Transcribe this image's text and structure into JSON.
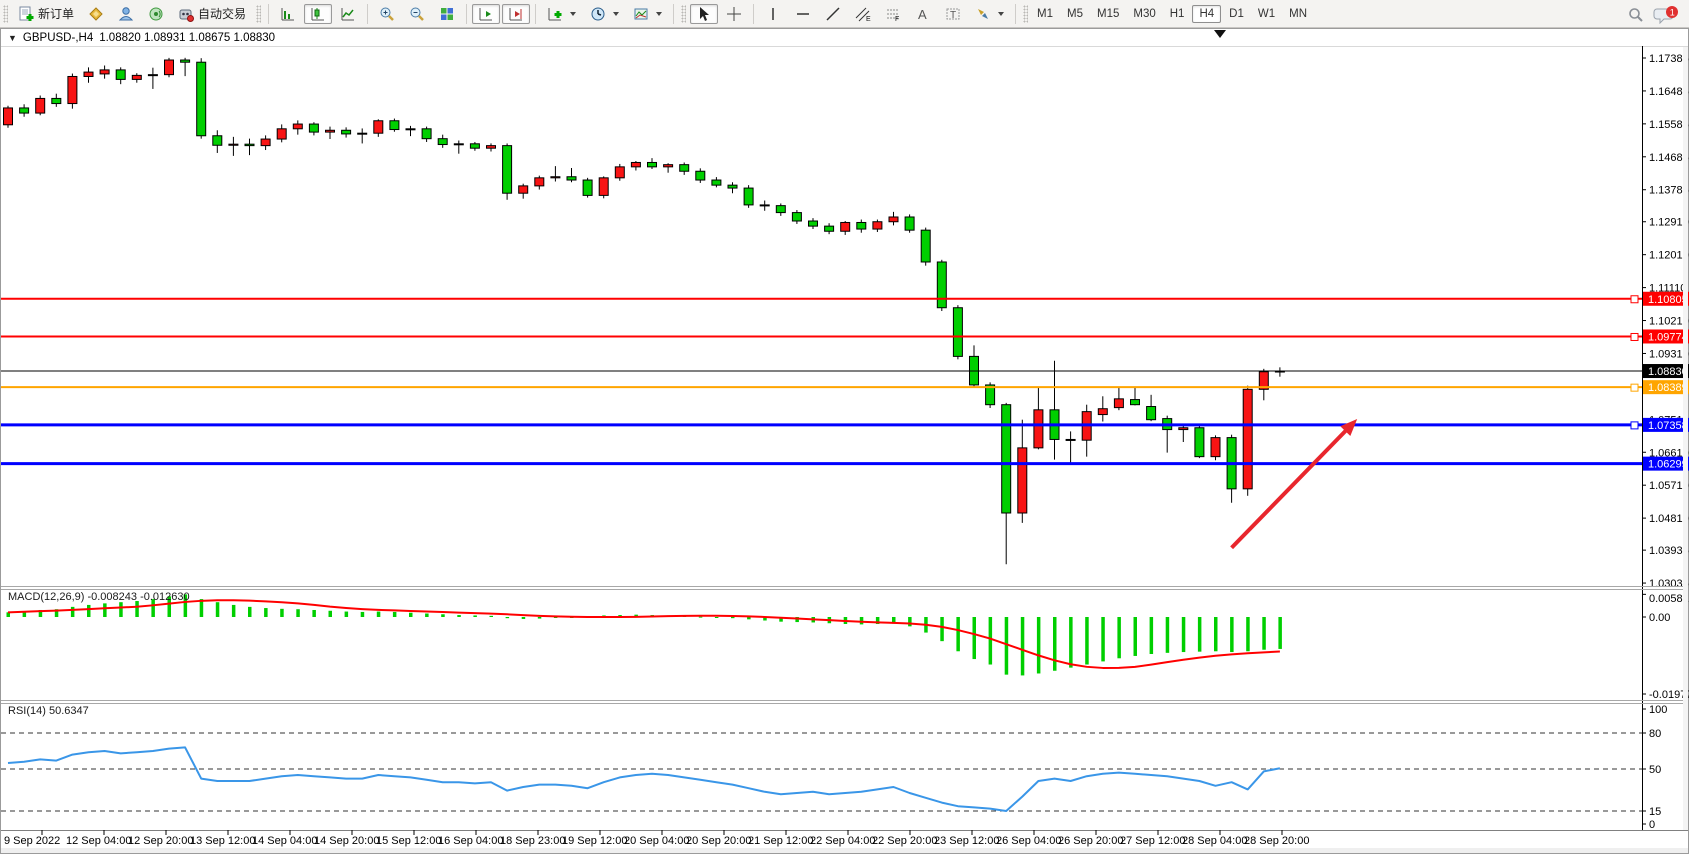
{
  "toolbar": {
    "new_order_label": "新订单",
    "auto_trading_label": "自动交易",
    "timeframes": [
      "M1",
      "M5",
      "M15",
      "M30",
      "H1",
      "H4",
      "D1",
      "W1",
      "MN"
    ],
    "active_timeframe": "H4",
    "notification_count": "1"
  },
  "header": {
    "symbol_period": "GBPUSD-,H4",
    "ohlc_text": "1.08820 1.08931 1.08675 1.08830"
  },
  "chart_data": {
    "type": "candlestick",
    "symbol": "GBPUSD-",
    "period": "H4",
    "current_ohlc": {
      "open": "1.08820",
      "high": "1.08931",
      "low": "1.08675",
      "close": "1.08830"
    },
    "up_color": "#f81414",
    "down_color": "#00cf00",
    "candles": [
      [
        1.1556,
        1.1608,
        1.1548,
        1.1602
      ],
      [
        1.1602,
        1.1612,
        1.1578,
        1.1588
      ],
      [
        1.1588,
        1.1636,
        1.1582,
        1.1628
      ],
      [
        1.1628,
        1.1641,
        1.1605,
        1.1614
      ],
      [
        1.1614,
        1.1696,
        1.16,
        1.1688
      ],
      [
        1.1688,
        1.1713,
        1.1671,
        1.17
      ],
      [
        1.1695,
        1.1718,
        1.1682,
        1.1706
      ],
      [
        1.1706,
        1.1713,
        1.1667,
        1.168
      ],
      [
        1.168,
        1.1697,
        1.1671,
        1.1691
      ],
      [
        1.1691,
        1.1712,
        1.1654,
        1.1693
      ],
      [
        1.1693,
        1.1739,
        1.1686,
        1.1733
      ],
      [
        1.1733,
        1.1739,
        1.1689,
        1.1727
      ],
      [
        1.1727,
        1.1738,
        1.1518,
        1.1526
      ],
      [
        1.1526,
        1.1541,
        1.1479,
        1.15
      ],
      [
        1.15,
        1.1523,
        1.1471,
        1.1503
      ],
      [
        1.1503,
        1.1518,
        1.1473,
        1.1499
      ],
      [
        1.1499,
        1.1527,
        1.1487,
        1.1517
      ],
      [
        1.1517,
        1.1557,
        1.1508,
        1.1545
      ],
      [
        1.1545,
        1.1568,
        1.1529,
        1.1558
      ],
      [
        1.1558,
        1.1563,
        1.1527,
        1.1536
      ],
      [
        1.1536,
        1.1551,
        1.1517,
        1.1541
      ],
      [
        1.1541,
        1.1549,
        1.1521,
        1.1531
      ],
      [
        1.1531,
        1.1546,
        1.1505,
        1.1533
      ],
      [
        1.1533,
        1.1571,
        1.1523,
        1.1567
      ],
      [
        1.1567,
        1.1573,
        1.1537,
        1.1543
      ],
      [
        1.1543,
        1.1553,
        1.1525,
        1.1545
      ],
      [
        1.1545,
        1.1551,
        1.1509,
        1.1518
      ],
      [
        1.1518,
        1.1529,
        1.1493,
        1.1502
      ],
      [
        1.1502,
        1.1513,
        1.1477,
        1.1504
      ],
      [
        1.1504,
        1.1509,
        1.1485,
        1.1492
      ],
      [
        1.1492,
        1.1505,
        1.1483,
        1.1499
      ],
      [
        1.1499,
        1.1505,
        1.1351,
        1.1369
      ],
      [
        1.1369,
        1.1395,
        1.1354,
        1.1389
      ],
      [
        1.1389,
        1.1417,
        1.1379,
        1.1411
      ],
      [
        1.1411,
        1.1443,
        1.1401,
        1.1414
      ],
      [
        1.1414,
        1.1438,
        1.1399,
        1.1405
      ],
      [
        1.1405,
        1.1411,
        1.1357,
        1.1363
      ],
      [
        1.1363,
        1.1415,
        1.1355,
        1.1411
      ],
      [
        1.1411,
        1.1449,
        1.1403,
        1.1441
      ],
      [
        1.1441,
        1.1457,
        1.1431,
        1.1453
      ],
      [
        1.1453,
        1.1465,
        1.1435,
        1.1441
      ],
      [
        1.1441,
        1.1451,
        1.1425,
        1.1447
      ],
      [
        1.1447,
        1.1453,
        1.1419,
        1.1429
      ],
      [
        1.1429,
        1.1437,
        1.1397,
        1.1405
      ],
      [
        1.1405,
        1.1413,
        1.1385,
        1.1391
      ],
      [
        1.1391,
        1.1399,
        1.1369,
        1.1383
      ],
      [
        1.1383,
        1.1391,
        1.1329,
        1.1337
      ],
      [
        1.1337,
        1.1349,
        1.1321,
        1.1335
      ],
      [
        1.1335,
        1.1341,
        1.1307,
        1.1316
      ],
      [
        1.1316,
        1.1323,
        1.1285,
        1.1293
      ],
      [
        1.1293,
        1.1301,
        1.1271,
        1.1279
      ],
      [
        1.1279,
        1.1287,
        1.1257,
        1.1265
      ],
      [
        1.1265,
        1.1293,
        1.1255,
        1.1289
      ],
      [
        1.1289,
        1.1297,
        1.1261,
        1.1271
      ],
      [
        1.1271,
        1.1297,
        1.1263,
        1.1291
      ],
      [
        1.1291,
        1.1318,
        1.1281,
        1.1304
      ],
      [
        1.1304,
        1.1311,
        1.1261,
        1.1268
      ],
      [
        1.1268,
        1.1275,
        1.1171,
        1.1181
      ],
      [
        1.1181,
        1.1187,
        1.1047,
        1.1056
      ],
      [
        1.1056,
        1.1063,
        1.0915,
        1.0923
      ],
      [
        1.0923,
        1.0953,
        1.0838,
        1.0845
      ],
      [
        1.0845,
        1.0852,
        1.0782,
        1.0791
      ],
      [
        1.0791,
        1.0796,
        1.0355,
        1.0495
      ],
      [
        1.0495,
        1.075,
        1.0468,
        1.0673
      ],
      [
        1.0673,
        1.0839,
        1.0669,
        1.0777
      ],
      [
        1.0777,
        1.0911,
        1.0641,
        1.0696
      ],
      [
        1.0696,
        1.0718,
        1.0633,
        1.0694
      ],
      [
        1.0694,
        1.0791,
        1.0649,
        1.0772
      ],
      [
        1.0764,
        1.0814,
        1.0745,
        1.078
      ],
      [
        1.0783,
        1.0839,
        1.0776,
        1.0807
      ],
      [
        1.0805,
        1.0839,
        1.0789,
        1.0791
      ],
      [
        1.0786,
        1.0818,
        1.0746,
        1.075
      ],
      [
        1.0753,
        1.0761,
        1.066,
        1.0723
      ],
      [
        1.0723,
        1.0735,
        1.0689,
        1.0728
      ],
      [
        1.0728,
        1.0734,
        1.0645,
        1.0649
      ],
      [
        1.0649,
        1.0707,
        1.0639,
        1.0701
      ],
      [
        1.0701,
        1.0709,
        1.0523,
        1.0561
      ],
      [
        1.0561,
        1.0843,
        1.0542,
        1.0833
      ],
      [
        1.0833,
        1.0889,
        1.0803,
        1.0881
      ],
      [
        1.0882,
        1.08931,
        1.08675,
        1.0883
      ]
    ],
    "price_ticks": [
      "1.17385",
      "1.16485",
      "1.15585",
      "1.14685",
      "1.13785",
      "1.12910",
      "1.12010",
      "1.11110",
      "1.10210",
      "1.09310",
      "1.07510",
      "1.06610",
      "1.05710",
      "1.04810",
      "1.03935",
      "1.03035"
    ],
    "horizontal_lines": [
      {
        "price": 1.10805,
        "label": "1.10805",
        "color": "#ff0000",
        "width": 2,
        "handle": true
      },
      {
        "price": 1.09774,
        "label": "1.09774",
        "color": "#ff0000",
        "width": 2,
        "handle": true
      },
      {
        "price": 1.08389,
        "label": "1.08389",
        "color": "#ffa500",
        "width": 2,
        "handle": true
      },
      {
        "price": 1.07358,
        "label": "1.07358",
        "color": "#0000ff",
        "width": 3,
        "handle": true
      },
      {
        "price": 1.06299,
        "label": "1.06299",
        "color": "#0000ff",
        "width": 3,
        "handle": false
      }
    ],
    "current_price_line": {
      "price": 1.0883,
      "label": "1.08830",
      "color": "#000000"
    },
    "annotation_arrow": {
      "color": "#e8262d",
      "from_index": 76,
      "from_price": 1.04,
      "to_index": 83.8,
      "to_price": 1.0752
    },
    "time_labels": [
      "9 Sep 2022",
      "12 Sep 04:00",
      "12 Sep 20:00",
      "13 Sep 12:00",
      "14 Sep 04:00",
      "14 Sep 20:00",
      "15 Sep 12:00",
      "16 Sep 04:00",
      "18 Sep 23:00",
      "19 Sep 12:00",
      "20 Sep 04:00",
      "20 Sep 20:00",
      "21 Sep 12:00",
      "22 Sep 04:00",
      "22 Sep 20:00",
      "23 Sep 12:00",
      "26 Sep 04:00",
      "26 Sep 20:00",
      "27 Sep 12:00",
      "28 Sep 04:00",
      "28 Sep 20:00"
    ],
    "indicators": {
      "macd": {
        "display": "MACD(12,26,9) -0.008243 -0.012630",
        "main_value": "-0.008243",
        "signal_value": "-0.012630",
        "axis": [
          {
            "label": "0.005818",
            "value": 0.005818
          },
          {
            "label": "0.00",
            "value": 0
          },
          {
            "label": "-0.01977",
            "value": -0.01977
          }
        ],
        "histogram_color": "#00cf00",
        "signal_color": "#ff0000",
        "main": [
          0.0012,
          0.0015,
          0.0018,
          0.002,
          0.0026,
          0.0031,
          0.0035,
          0.0038,
          0.0041,
          0.0046,
          0.0053,
          0.0058,
          0.0046,
          0.0038,
          0.0031,
          0.0026,
          0.0023,
          0.0021,
          0.002,
          0.0018,
          0.0016,
          0.0014,
          0.0013,
          0.0014,
          0.0013,
          0.0011,
          0.0009,
          0.0007,
          0.0005,
          0.0004,
          0.0003,
          -0.0003,
          -0.0005,
          -0.0004,
          -0.0002,
          0.0,
          0.0002,
          0.0004,
          0.0005,
          0.0006,
          0.0005,
          0.0004,
          0.0003,
          0.0001,
          -0.0001,
          -0.0003,
          -0.0006,
          -0.0009,
          -0.0012,
          -0.0013,
          -0.0014,
          -0.0016,
          -0.0018,
          -0.0019,
          -0.0018,
          -0.0017,
          -0.0024,
          -0.004,
          -0.0062,
          -0.0088,
          -0.0108,
          -0.0122,
          -0.0148,
          -0.015,
          -0.0145,
          -0.0138,
          -0.013,
          -0.0122,
          -0.0114,
          -0.0106,
          -0.01,
          -0.0095,
          -0.0092,
          -0.009,
          -0.0089,
          -0.0088,
          -0.009,
          -0.0088,
          -0.0084,
          -0.0082
        ]
      },
      "rsi": {
        "display": "RSI(14) 50.6347",
        "value": "50.6347",
        "axis": [
          {
            "label": "100",
            "value": 100
          },
          {
            "label": "80",
            "value": 80
          },
          {
            "label": "50",
            "value": 50
          },
          {
            "label": "15",
            "value": 15
          },
          {
            "label": "0",
            "value": 0
          }
        ],
        "levels": [
          80,
          50,
          15
        ],
        "line_color": "#3a96e8",
        "values": [
          55,
          56,
          58,
          57,
          62,
          64,
          65,
          63,
          64,
          65,
          67,
          68,
          42,
          40,
          40,
          40,
          42,
          44,
          45,
          44,
          43,
          42,
          42,
          45,
          44,
          43,
          41,
          39,
          39,
          38,
          39,
          32,
          35,
          37,
          37,
          36,
          34,
          39,
          43,
          45,
          46,
          45,
          43,
          41,
          39,
          37,
          34,
          31,
          29,
          30,
          31,
          29,
          30,
          31,
          33,
          35,
          30,
          26,
          22,
          19,
          18,
          17,
          15,
          27,
          40,
          42,
          40,
          44,
          46,
          47,
          46,
          45,
          44,
          42,
          40,
          36,
          39,
          33,
          48,
          50.6
        ]
      }
    }
  }
}
